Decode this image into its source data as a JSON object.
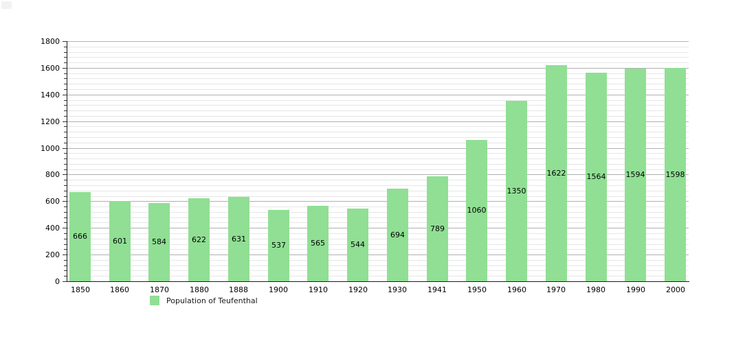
{
  "chart_data": {
    "type": "bar",
    "title": "",
    "categories": [
      "1850",
      "1860",
      "1870",
      "1880",
      "1888",
      "1900",
      "1910",
      "1920",
      "1930",
      "1941",
      "1950",
      "1960",
      "1970",
      "1980",
      "1990",
      "2000"
    ],
    "values": [
      666,
      601,
      584,
      622,
      631,
      537,
      565,
      544,
      694,
      789,
      1060,
      1350,
      1622,
      1564,
      1594,
      1598
    ],
    "bar_value_labels": [
      "666",
      "601",
      "584",
      "622",
      "631",
      "537",
      "565",
      "544",
      "694",
      "789",
      "1060",
      "1350",
      "1622",
      "1564",
      "1594",
      "1598"
    ],
    "xlabel": "",
    "ylabel": "",
    "ylim": [
      0,
      1800
    ],
    "y_major_step": 200,
    "y_minor_step": 40,
    "y_tick_labels": [
      "0",
      "200",
      "400",
      "600",
      "800",
      "1000",
      "1200",
      "1400",
      "1600",
      "1800"
    ],
    "grid": "on",
    "legend_position": "bottom-left",
    "legend": [
      {
        "label": "Population of Teufenthal",
        "color": "#90df94"
      }
    ],
    "colors": {
      "bar_fill": "#90df94",
      "axis": "#1a1a1a",
      "major_grid": "#b0b0b0",
      "minor_grid": "#e6e6e6",
      "tick": "#333333",
      "label_text": "#000000"
    }
  }
}
